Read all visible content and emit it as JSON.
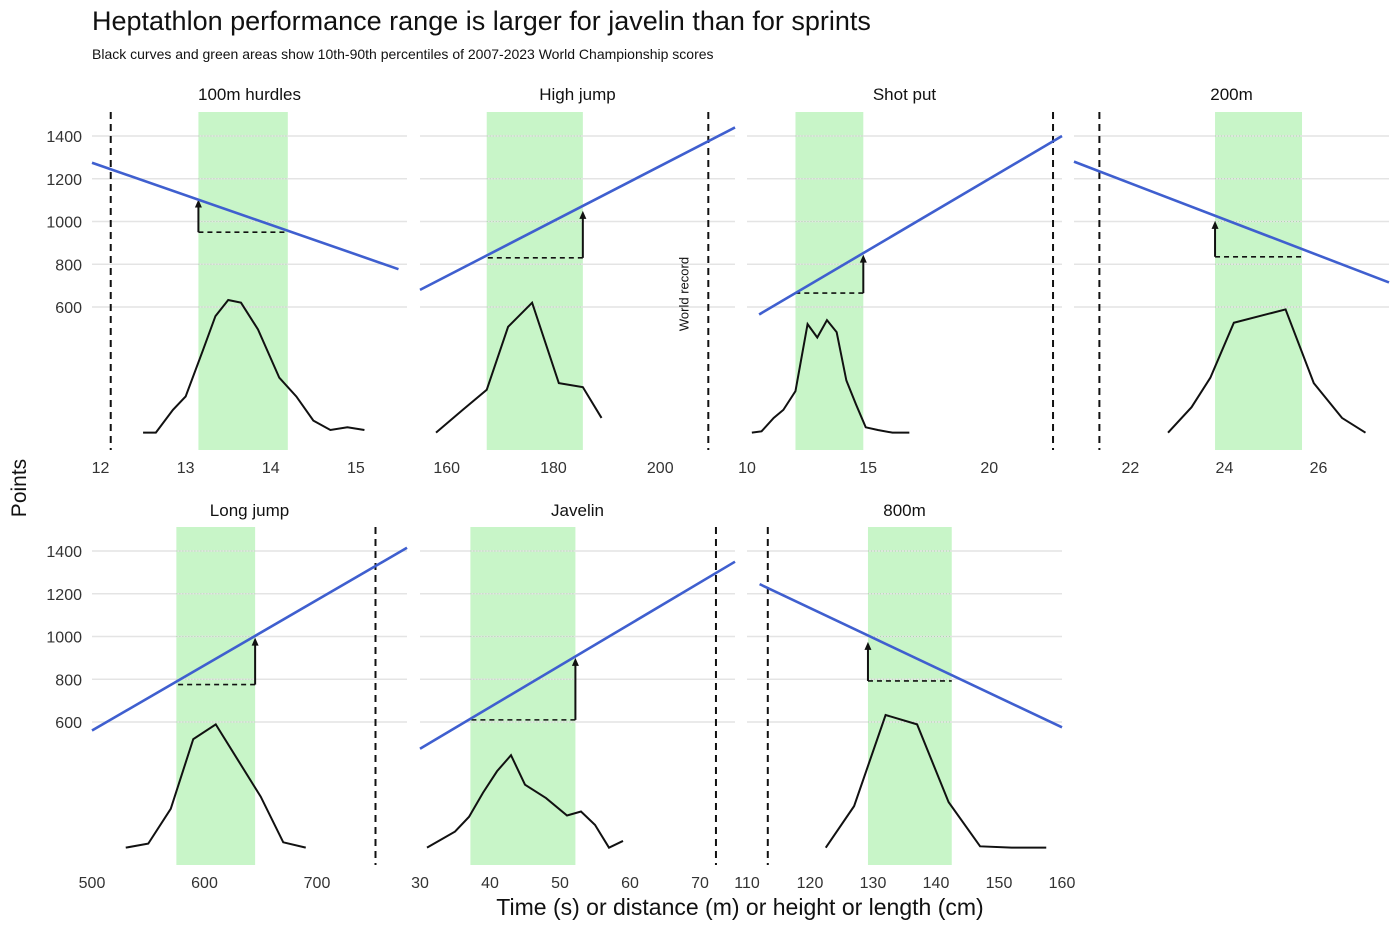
{
  "title": "Heptathlon performance range is larger for javelin than for sprints",
  "subtitle": "Black curves and green areas show 10th-90th percentiles of 2007-2023 World Championship scores",
  "xlabel": "Time (s) or distance (m) or height or length (cm)",
  "ylabel": "Points",
  "colors": {
    "points_line": "#3f5fcf",
    "band": "#c8f5c8",
    "curve": "#111111",
    "grid": "#e4e4e4"
  },
  "chart_data": [
    {
      "type": "line",
      "name": "100m hurdles",
      "xlim": [
        11.9,
        15.6
      ],
      "ylim": [
        470,
        1520
      ],
      "xticks": [
        12,
        13,
        14,
        15
      ],
      "yticks": [
        600,
        800,
        1000,
        1200,
        1400
      ],
      "band": [
        13.15,
        14.2
      ],
      "record": 12.12,
      "points_line": [
        [
          11.9,
          1275
        ],
        [
          15.5,
          777
        ]
      ],
      "arrow": {
        "x": 13.15,
        "from": 950,
        "to": 1103,
        "dash_to": 14.2
      },
      "curve": [
        [
          12.5,
          0.01
        ],
        [
          12.65,
          0.01
        ],
        [
          12.85,
          0.18
        ],
        [
          13.0,
          0.28
        ],
        [
          13.2,
          0.62
        ],
        [
          13.35,
          0.88
        ],
        [
          13.5,
          1.0
        ],
        [
          13.65,
          0.98
        ],
        [
          13.85,
          0.78
        ],
        [
          14.1,
          0.42
        ],
        [
          14.3,
          0.28
        ],
        [
          14.5,
          0.1
        ],
        [
          14.7,
          0.03
        ],
        [
          14.9,
          0.05
        ],
        [
          15.1,
          0.03
        ]
      ]
    },
    {
      "type": "line",
      "name": "High jump",
      "xlim": [
        155,
        214
      ],
      "ylim": [
        470,
        1520
      ],
      "xticks": [
        160,
        180,
        200
      ],
      "yticks": [
        600,
        800,
        1000,
        1200,
        1400
      ],
      "band": [
        167.5,
        185.5
      ],
      "record": 209,
      "record_label": "World record",
      "points_line": [
        [
          155,
          680
        ],
        [
          214,
          1440
        ]
      ],
      "arrow": {
        "x": 185.5,
        "from": 830,
        "to": 1050,
        "dash_to": 167.5
      },
      "curve": [
        [
          158,
          0.01
        ],
        [
          163,
          0.18
        ],
        [
          167.5,
          0.33
        ],
        [
          171.5,
          0.8
        ],
        [
          176,
          0.98
        ],
        [
          181,
          0.38
        ],
        [
          185.5,
          0.35
        ],
        [
          189,
          0.12
        ]
      ]
    },
    {
      "type": "line",
      "name": "Shot put",
      "xlim": [
        10.0,
        23.0
      ],
      "ylim": [
        470,
        1520
      ],
      "xticks": [
        10,
        15,
        20
      ],
      "yticks": [
        600,
        800,
        1000,
        1200,
        1400
      ],
      "band": [
        12.0,
        14.8
      ],
      "record": 22.63,
      "points_line": [
        [
          10.5,
          565
        ],
        [
          23.0,
          1400
        ]
      ],
      "arrow": {
        "x": 14.8,
        "from": 665,
        "to": 845,
        "dash_to": 12.0
      },
      "curve": [
        [
          10.2,
          0.01
        ],
        [
          10.6,
          0.02
        ],
        [
          11.1,
          0.12
        ],
        [
          11.5,
          0.18
        ],
        [
          12.0,
          0.32
        ],
        [
          12.5,
          0.82
        ],
        [
          12.9,
          0.72
        ],
        [
          13.3,
          0.85
        ],
        [
          13.7,
          0.76
        ],
        [
          14.1,
          0.4
        ],
        [
          14.5,
          0.22
        ],
        [
          14.9,
          0.05
        ],
        [
          15.4,
          0.03
        ],
        [
          16.0,
          0.01
        ],
        [
          16.7,
          0.01
        ]
      ]
    },
    {
      "type": "line",
      "name": "200m",
      "xlim": [
        20.8,
        27.5
      ],
      "ylim": [
        470,
        1520
      ],
      "xticks": [
        22,
        24,
        26
      ],
      "yticks": [
        600,
        800,
        1000,
        1200,
        1400
      ],
      "band": [
        23.8,
        25.65
      ],
      "record": 21.34,
      "points_line": [
        [
          20.8,
          1280
        ],
        [
          27.5,
          715
        ]
      ],
      "arrow": {
        "x": 23.8,
        "from": 835,
        "to": 1003,
        "dash_to": 25.65
      },
      "curve": [
        [
          22.8,
          0.01
        ],
        [
          23.3,
          0.2
        ],
        [
          23.7,
          0.42
        ],
        [
          24.2,
          0.83
        ],
        [
          25.3,
          0.93
        ],
        [
          25.9,
          0.38
        ],
        [
          26.5,
          0.12
        ],
        [
          27.0,
          0.01
        ]
      ]
    },
    {
      "type": "line",
      "name": "Long jump",
      "xlim": [
        500,
        780
      ],
      "ylim": [
        470,
        1520
      ],
      "xticks": [
        500,
        600,
        700
      ],
      "yticks": [
        600,
        800,
        1000,
        1200,
        1400
      ],
      "band": [
        575,
        645
      ],
      "record": 752,
      "points_line": [
        [
          500,
          560
        ],
        [
          780,
          1415
        ]
      ],
      "arrow": {
        "x": 645,
        "from": 775,
        "to": 995,
        "dash_to": 575
      },
      "curve": [
        [
          530,
          0.01
        ],
        [
          550,
          0.04
        ],
        [
          570,
          0.3
        ],
        [
          590,
          0.82
        ],
        [
          610,
          0.93
        ],
        [
          630,
          0.66
        ],
        [
          650,
          0.39
        ],
        [
          670,
          0.05
        ],
        [
          690,
          0.01
        ]
      ]
    },
    {
      "type": "line",
      "name": "Javelin",
      "xlim": [
        30,
        75
      ],
      "ylim": [
        470,
        1520
      ],
      "xticks": [
        30,
        40,
        50,
        60,
        70
      ],
      "yticks": [
        600,
        800,
        1000,
        1200,
        1400
      ],
      "band": [
        37.2,
        52.2
      ],
      "record": 72.28,
      "points_line": [
        [
          30,
          475
        ],
        [
          75,
          1350
        ]
      ],
      "arrow": {
        "x": 52.2,
        "from": 610,
        "to": 900,
        "dash_to": 37.2
      },
      "curve": [
        [
          31,
          0.01
        ],
        [
          33,
          0.07
        ],
        [
          35,
          0.13
        ],
        [
          37,
          0.24
        ],
        [
          39,
          0.42
        ],
        [
          41,
          0.58
        ],
        [
          43,
          0.7
        ],
        [
          45,
          0.48
        ],
        [
          48,
          0.38
        ],
        [
          51,
          0.25
        ],
        [
          53,
          0.28
        ],
        [
          55,
          0.18
        ],
        [
          57,
          0.01
        ],
        [
          59,
          0.06
        ]
      ]
    },
    {
      "type": "line",
      "name": "800m",
      "xlim": [
        110,
        160
      ],
      "ylim": [
        470,
        1520
      ],
      "xticks": [
        110,
        120,
        130,
        140,
        150,
        160
      ],
      "yticks": [
        600,
        800,
        1000,
        1200,
        1400
      ],
      "band": [
        129.2,
        142.5
      ],
      "record": 113.3,
      "points_line": [
        [
          112,
          1245
        ],
        [
          160,
          575
        ]
      ],
      "arrow": {
        "x": 129.2,
        "from": 792,
        "to": 975,
        "dash_to": 142.5
      },
      "curve": [
        [
          122.5,
          0.01
        ],
        [
          127,
          0.32
        ],
        [
          132,
          1.0
        ],
        [
          137,
          0.93
        ],
        [
          142,
          0.35
        ],
        [
          147,
          0.02
        ],
        [
          152,
          0.01
        ],
        [
          157.5,
          0.01
        ]
      ]
    }
  ]
}
